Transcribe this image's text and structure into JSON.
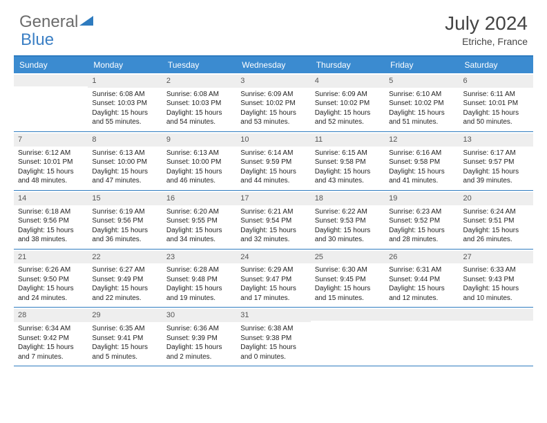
{
  "logo": {
    "text1": "General",
    "text2": "Blue"
  },
  "title": "July 2024",
  "location": "Etriche, France",
  "colors": {
    "header_bg": "#3b8bd0",
    "rule": "#2e7bbf",
    "daynum_bg": "#eeeeee",
    "logo_grey": "#6b6b6b",
    "logo_blue": "#3b7fc4"
  },
  "day_headers": [
    "Sunday",
    "Monday",
    "Tuesday",
    "Wednesday",
    "Thursday",
    "Friday",
    "Saturday"
  ],
  "weeks": [
    [
      null,
      {
        "n": "1",
        "sr": "Sunrise: 6:08 AM",
        "ss": "Sunset: 10:03 PM",
        "dl": "Daylight: 15 hours and 55 minutes."
      },
      {
        "n": "2",
        "sr": "Sunrise: 6:08 AM",
        "ss": "Sunset: 10:03 PM",
        "dl": "Daylight: 15 hours and 54 minutes."
      },
      {
        "n": "3",
        "sr": "Sunrise: 6:09 AM",
        "ss": "Sunset: 10:02 PM",
        "dl": "Daylight: 15 hours and 53 minutes."
      },
      {
        "n": "4",
        "sr": "Sunrise: 6:09 AM",
        "ss": "Sunset: 10:02 PM",
        "dl": "Daylight: 15 hours and 52 minutes."
      },
      {
        "n": "5",
        "sr": "Sunrise: 6:10 AM",
        "ss": "Sunset: 10:02 PM",
        "dl": "Daylight: 15 hours and 51 minutes."
      },
      {
        "n": "6",
        "sr": "Sunrise: 6:11 AM",
        "ss": "Sunset: 10:01 PM",
        "dl": "Daylight: 15 hours and 50 minutes."
      }
    ],
    [
      {
        "n": "7",
        "sr": "Sunrise: 6:12 AM",
        "ss": "Sunset: 10:01 PM",
        "dl": "Daylight: 15 hours and 48 minutes."
      },
      {
        "n": "8",
        "sr": "Sunrise: 6:13 AM",
        "ss": "Sunset: 10:00 PM",
        "dl": "Daylight: 15 hours and 47 minutes."
      },
      {
        "n": "9",
        "sr": "Sunrise: 6:13 AM",
        "ss": "Sunset: 10:00 PM",
        "dl": "Daylight: 15 hours and 46 minutes."
      },
      {
        "n": "10",
        "sr": "Sunrise: 6:14 AM",
        "ss": "Sunset: 9:59 PM",
        "dl": "Daylight: 15 hours and 44 minutes."
      },
      {
        "n": "11",
        "sr": "Sunrise: 6:15 AM",
        "ss": "Sunset: 9:58 PM",
        "dl": "Daylight: 15 hours and 43 minutes."
      },
      {
        "n": "12",
        "sr": "Sunrise: 6:16 AM",
        "ss": "Sunset: 9:58 PM",
        "dl": "Daylight: 15 hours and 41 minutes."
      },
      {
        "n": "13",
        "sr": "Sunrise: 6:17 AM",
        "ss": "Sunset: 9:57 PM",
        "dl": "Daylight: 15 hours and 39 minutes."
      }
    ],
    [
      {
        "n": "14",
        "sr": "Sunrise: 6:18 AM",
        "ss": "Sunset: 9:56 PM",
        "dl": "Daylight: 15 hours and 38 minutes."
      },
      {
        "n": "15",
        "sr": "Sunrise: 6:19 AM",
        "ss": "Sunset: 9:56 PM",
        "dl": "Daylight: 15 hours and 36 minutes."
      },
      {
        "n": "16",
        "sr": "Sunrise: 6:20 AM",
        "ss": "Sunset: 9:55 PM",
        "dl": "Daylight: 15 hours and 34 minutes."
      },
      {
        "n": "17",
        "sr": "Sunrise: 6:21 AM",
        "ss": "Sunset: 9:54 PM",
        "dl": "Daylight: 15 hours and 32 minutes."
      },
      {
        "n": "18",
        "sr": "Sunrise: 6:22 AM",
        "ss": "Sunset: 9:53 PM",
        "dl": "Daylight: 15 hours and 30 minutes."
      },
      {
        "n": "19",
        "sr": "Sunrise: 6:23 AM",
        "ss": "Sunset: 9:52 PM",
        "dl": "Daylight: 15 hours and 28 minutes."
      },
      {
        "n": "20",
        "sr": "Sunrise: 6:24 AM",
        "ss": "Sunset: 9:51 PM",
        "dl": "Daylight: 15 hours and 26 minutes."
      }
    ],
    [
      {
        "n": "21",
        "sr": "Sunrise: 6:26 AM",
        "ss": "Sunset: 9:50 PM",
        "dl": "Daylight: 15 hours and 24 minutes."
      },
      {
        "n": "22",
        "sr": "Sunrise: 6:27 AM",
        "ss": "Sunset: 9:49 PM",
        "dl": "Daylight: 15 hours and 22 minutes."
      },
      {
        "n": "23",
        "sr": "Sunrise: 6:28 AM",
        "ss": "Sunset: 9:48 PM",
        "dl": "Daylight: 15 hours and 19 minutes."
      },
      {
        "n": "24",
        "sr": "Sunrise: 6:29 AM",
        "ss": "Sunset: 9:47 PM",
        "dl": "Daylight: 15 hours and 17 minutes."
      },
      {
        "n": "25",
        "sr": "Sunrise: 6:30 AM",
        "ss": "Sunset: 9:45 PM",
        "dl": "Daylight: 15 hours and 15 minutes."
      },
      {
        "n": "26",
        "sr": "Sunrise: 6:31 AM",
        "ss": "Sunset: 9:44 PM",
        "dl": "Daylight: 15 hours and 12 minutes."
      },
      {
        "n": "27",
        "sr": "Sunrise: 6:33 AM",
        "ss": "Sunset: 9:43 PM",
        "dl": "Daylight: 15 hours and 10 minutes."
      }
    ],
    [
      {
        "n": "28",
        "sr": "Sunrise: 6:34 AM",
        "ss": "Sunset: 9:42 PM",
        "dl": "Daylight: 15 hours and 7 minutes."
      },
      {
        "n": "29",
        "sr": "Sunrise: 6:35 AM",
        "ss": "Sunset: 9:41 PM",
        "dl": "Daylight: 15 hours and 5 minutes."
      },
      {
        "n": "30",
        "sr": "Sunrise: 6:36 AM",
        "ss": "Sunset: 9:39 PM",
        "dl": "Daylight: 15 hours and 2 minutes."
      },
      {
        "n": "31",
        "sr": "Sunrise: 6:38 AM",
        "ss": "Sunset: 9:38 PM",
        "dl": "Daylight: 15 hours and 0 minutes."
      },
      null,
      null,
      null
    ]
  ]
}
